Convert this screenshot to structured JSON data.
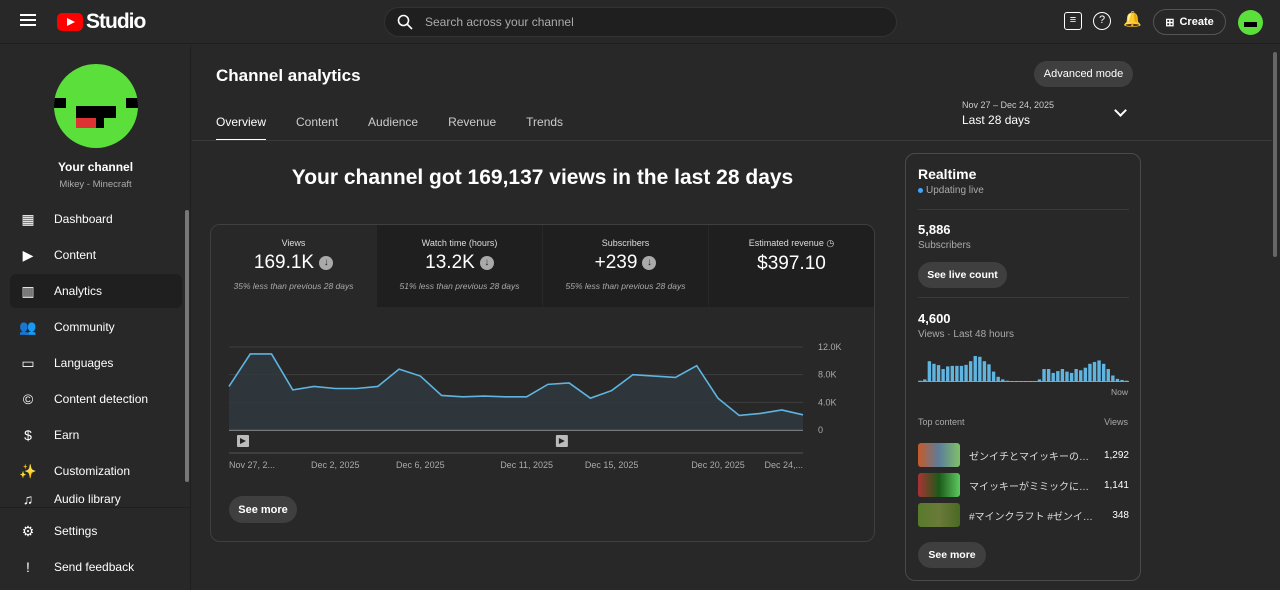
{
  "header": {
    "app_name": "Studio",
    "search_placeholder": "Search across your channel",
    "create_label": "Create"
  },
  "sidebar": {
    "channel_label": "Your channel",
    "channel_name": "Mikey - Minecraft",
    "items": [
      {
        "label": "Dashboard",
        "icon": "▦"
      },
      {
        "label": "Content",
        "icon": "▶"
      },
      {
        "label": "Analytics",
        "icon": "▥"
      },
      {
        "label": "Community",
        "icon": "👥"
      },
      {
        "label": "Languages",
        "icon": "▭"
      },
      {
        "label": "Content detection",
        "icon": "©"
      },
      {
        "label": "Earn",
        "icon": "$"
      },
      {
        "label": "Customization",
        "icon": "✨"
      },
      {
        "label": "Audio library",
        "icon": "♫"
      }
    ],
    "bottom": [
      {
        "label": "Settings",
        "icon": "⚙"
      },
      {
        "label": "Send feedback",
        "icon": "!"
      }
    ]
  },
  "main": {
    "title": "Channel analytics",
    "advanced_mode": "Advanced mode",
    "tabs": [
      "Overview",
      "Content",
      "Audience",
      "Revenue",
      "Trends"
    ],
    "date_range": "Nov 27 – Dec 24, 2025",
    "date_label": "Last 28 days",
    "headline": "Your channel got 169,137 views in the last 28 days",
    "metrics": [
      {
        "label": "Views",
        "value": "169.1K",
        "change": "35% less than previous 28 days"
      },
      {
        "label": "Watch time (hours)",
        "value": "13.2K",
        "change": "51% less than previous 28 days"
      },
      {
        "label": "Subscribers",
        "value": "+239",
        "change": "55% less than previous 28 days"
      },
      {
        "label": "Estimated revenue",
        "value": "$397.10"
      }
    ],
    "see_more": "See more"
  },
  "chart_data": {
    "type": "area",
    "title": "Views",
    "x_labels": [
      "Nov 27, 2...",
      "Dec 2, 2025",
      "Dec 6, 2025",
      "Dec 11, 2025",
      "Dec 15, 2025",
      "Dec 20, 2025",
      "Dec 24,..."
    ],
    "x_label_index": [
      0,
      5,
      9,
      14,
      18,
      23,
      27
    ],
    "values": [
      6300,
      11000,
      11000,
      5800,
      6300,
      6000,
      6000,
      6300,
      8800,
      7800,
      5000,
      4800,
      4900,
      4800,
      4800,
      6600,
      6800,
      4600,
      5700,
      8000,
      7800,
      7600,
      9300,
      4600,
      2100,
      2400,
      2900,
      2200
    ],
    "yticks": [
      "12.0K",
      "8.0K",
      "4.0K",
      "0"
    ],
    "ylim": [
      0,
      12000
    ],
    "video_markers": [
      0,
      15
    ],
    "color": "#5fb4e0"
  },
  "realtime": {
    "title": "Realtime",
    "status": "Updating live",
    "subscribers": "5,886",
    "subscribers_label": "Subscribers",
    "live_count_btn": "See live count",
    "views": "4,600",
    "views_label": "Views · Last 48 hours",
    "now_label": "Now",
    "bars": [
      0.05,
      0.1,
      0.8,
      0.7,
      0.65,
      0.5,
      0.6,
      0.62,
      0.62,
      0.62,
      0.66,
      0.8,
      1,
      0.97,
      0.8,
      0.68,
      0.4,
      0.2,
      0.1,
      0.05,
      0.03,
      0.03,
      0.03,
      0.03,
      0.03,
      0.03,
      0.1,
      0.5,
      0.5,
      0.35,
      0.42,
      0.5,
      0.4,
      0.35,
      0.5,
      0.45,
      0.55,
      0.7,
      0.77,
      0.83,
      0.7,
      0.5,
      0.25,
      0.12,
      0.08,
      0.05
    ],
    "top_content_label": "Top content",
    "views_col": "Views",
    "top": [
      {
        "title": "ゼンイチとマイッキーの…",
        "views": "1,292"
      },
      {
        "title": "マイッキーがミミックに…",
        "views": "1,141"
      },
      {
        "title": "#マインクラフト #ゼンイ…",
        "views": "348"
      }
    ],
    "see_more": "See more"
  }
}
